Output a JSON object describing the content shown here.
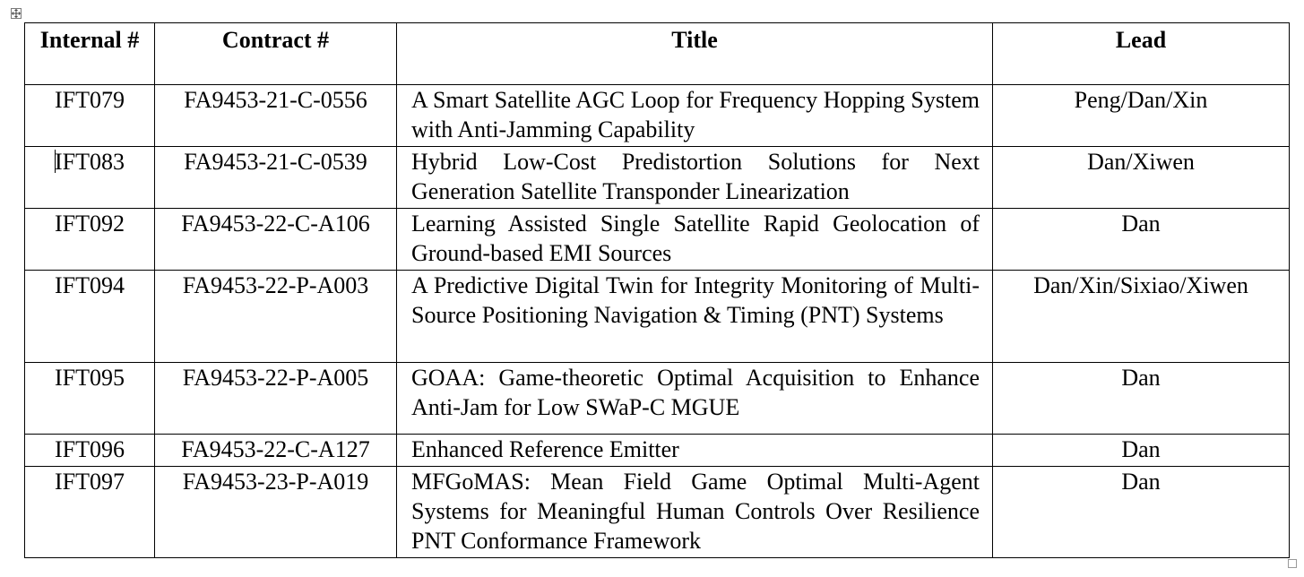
{
  "table": {
    "headers": {
      "internal": "Internal #",
      "contract": "Contract #",
      "title": "Title",
      "lead": "Lead"
    },
    "rows": [
      {
        "internal": "IFT079",
        "contract": "FA9453-21-C-0556",
        "title": "A Smart Satellite AGC Loop for Frequency Hopping System with Anti-Jamming Capability",
        "lead": "Peng/Dan/Xin"
      },
      {
        "internal": "IFT083",
        "contract": "FA9453-21-C-0539",
        "title": "Hybrid Low-Cost Predistortion Solutions for Next Generation Satellite Transponder Linearization",
        "lead": "Dan/Xiwen"
      },
      {
        "internal": "IFT092",
        "contract": "FA9453-22-C-A106",
        "title": "Learning Assisted Single Satellite Rapid Geolocation of Ground-based EMI Sources",
        "lead": "Dan"
      },
      {
        "internal": "IFT094",
        "contract": "FA9453-22-P-A003",
        "title": "A Predictive Digital Twin for Integrity Monitoring of Multi-Source Positioning Navigation & Timing (PNT) Systems",
        "lead": "Dan/Xin/Sixiao/Xiwen"
      },
      {
        "internal": "IFT095",
        "contract": "FA9453-22-P-A005",
        "title": "GOAA: Game-theoretic Optimal Acquisition to Enhance Anti-Jam for Low SWaP-C MGUE",
        "lead": "Dan"
      },
      {
        "internal": "IFT096",
        "contract": "FA9453-22-C-A127",
        "title": "Enhanced Reference Emitter",
        "lead": "Dan"
      },
      {
        "internal": "IFT097",
        "contract": "FA9453-23-P-A019",
        "title": "MFGoMAS: Mean Field Game Optimal Multi-Agent Systems for Meaningful Human Controls Over Resilience PNT Conformance Framework",
        "lead": "Dan"
      }
    ]
  }
}
